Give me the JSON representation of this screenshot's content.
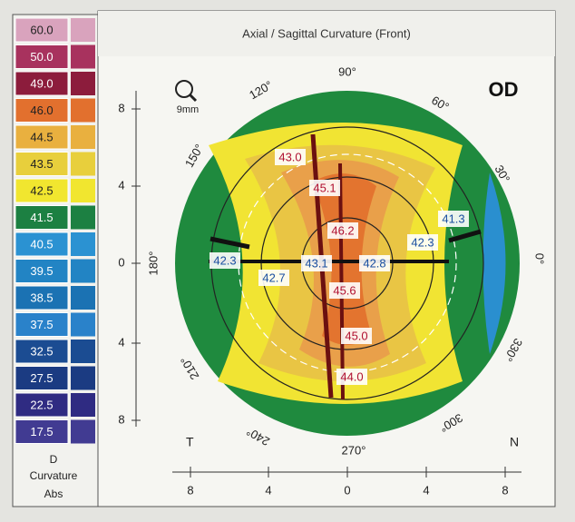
{
  "header": {
    "title": "Axial / Sagittal Curvature (Front)",
    "eye": "OD",
    "zoom": "9mm"
  },
  "scale": {
    "steps": [
      {
        "label": "60.0",
        "color": "#d9a3bd"
      },
      {
        "label": "50.0",
        "color": "#a8325e"
      },
      {
        "label": "49.0",
        "color": "#8c1c3c"
      },
      {
        "label": "46.0",
        "color": "#e2702e"
      },
      {
        "label": "44.5",
        "color": "#e9b03f"
      },
      {
        "label": "43.5",
        "color": "#e8cf3c"
      },
      {
        "label": "42.5",
        "color": "#f1e62f"
      },
      {
        "label": "41.5",
        "color": "#1c8042"
      },
      {
        "label": "40.5",
        "color": "#2b92d2"
      },
      {
        "label": "39.5",
        "color": "#2284c4"
      },
      {
        "label": "38.5",
        "color": "#1b72b3"
      },
      {
        "label": "37.5",
        "color": "#2a82ca"
      },
      {
        "label": "32.5",
        "color": "#1b4c92"
      },
      {
        "label": "27.5",
        "color": "#1b3b82"
      },
      {
        "label": "22.5",
        "color": "#2f2b82"
      },
      {
        "label": "17.5",
        "color": "#413b92"
      }
    ],
    "unit": "D",
    "kind": "Curvature",
    "mode": "Abs"
  },
  "map": {
    "readings": [
      {
        "label": "43.0",
        "tone": "steep"
      },
      {
        "label": "45.1",
        "tone": "steep"
      },
      {
        "label": "46.2",
        "tone": "steep"
      },
      {
        "label": "41.3",
        "tone": "flat"
      },
      {
        "label": "42.3",
        "tone": "flat"
      },
      {
        "label": "42.3",
        "tone": "flat"
      },
      {
        "label": "43.1",
        "tone": "flat"
      },
      {
        "label": "42.8",
        "tone": "flat"
      },
      {
        "label": "42.7",
        "tone": "flat"
      },
      {
        "label": "45.6",
        "tone": "steep"
      },
      {
        "label": "45.0",
        "tone": "steep"
      },
      {
        "label": "44.0",
        "tone": "steep"
      }
    ],
    "angles": [
      "90°",
      "120°",
      "60°",
      "150°",
      "30°",
      "180°",
      "0°",
      "210°",
      "330°",
      "240°",
      "300°",
      "270°"
    ],
    "temporal": "T",
    "nasal": "N"
  },
  "axes": {
    "y_ticks": [
      "8",
      "4",
      "0",
      "4",
      "8"
    ],
    "x_ticks": [
      "8",
      "4",
      "0",
      "4",
      "8"
    ]
  }
}
